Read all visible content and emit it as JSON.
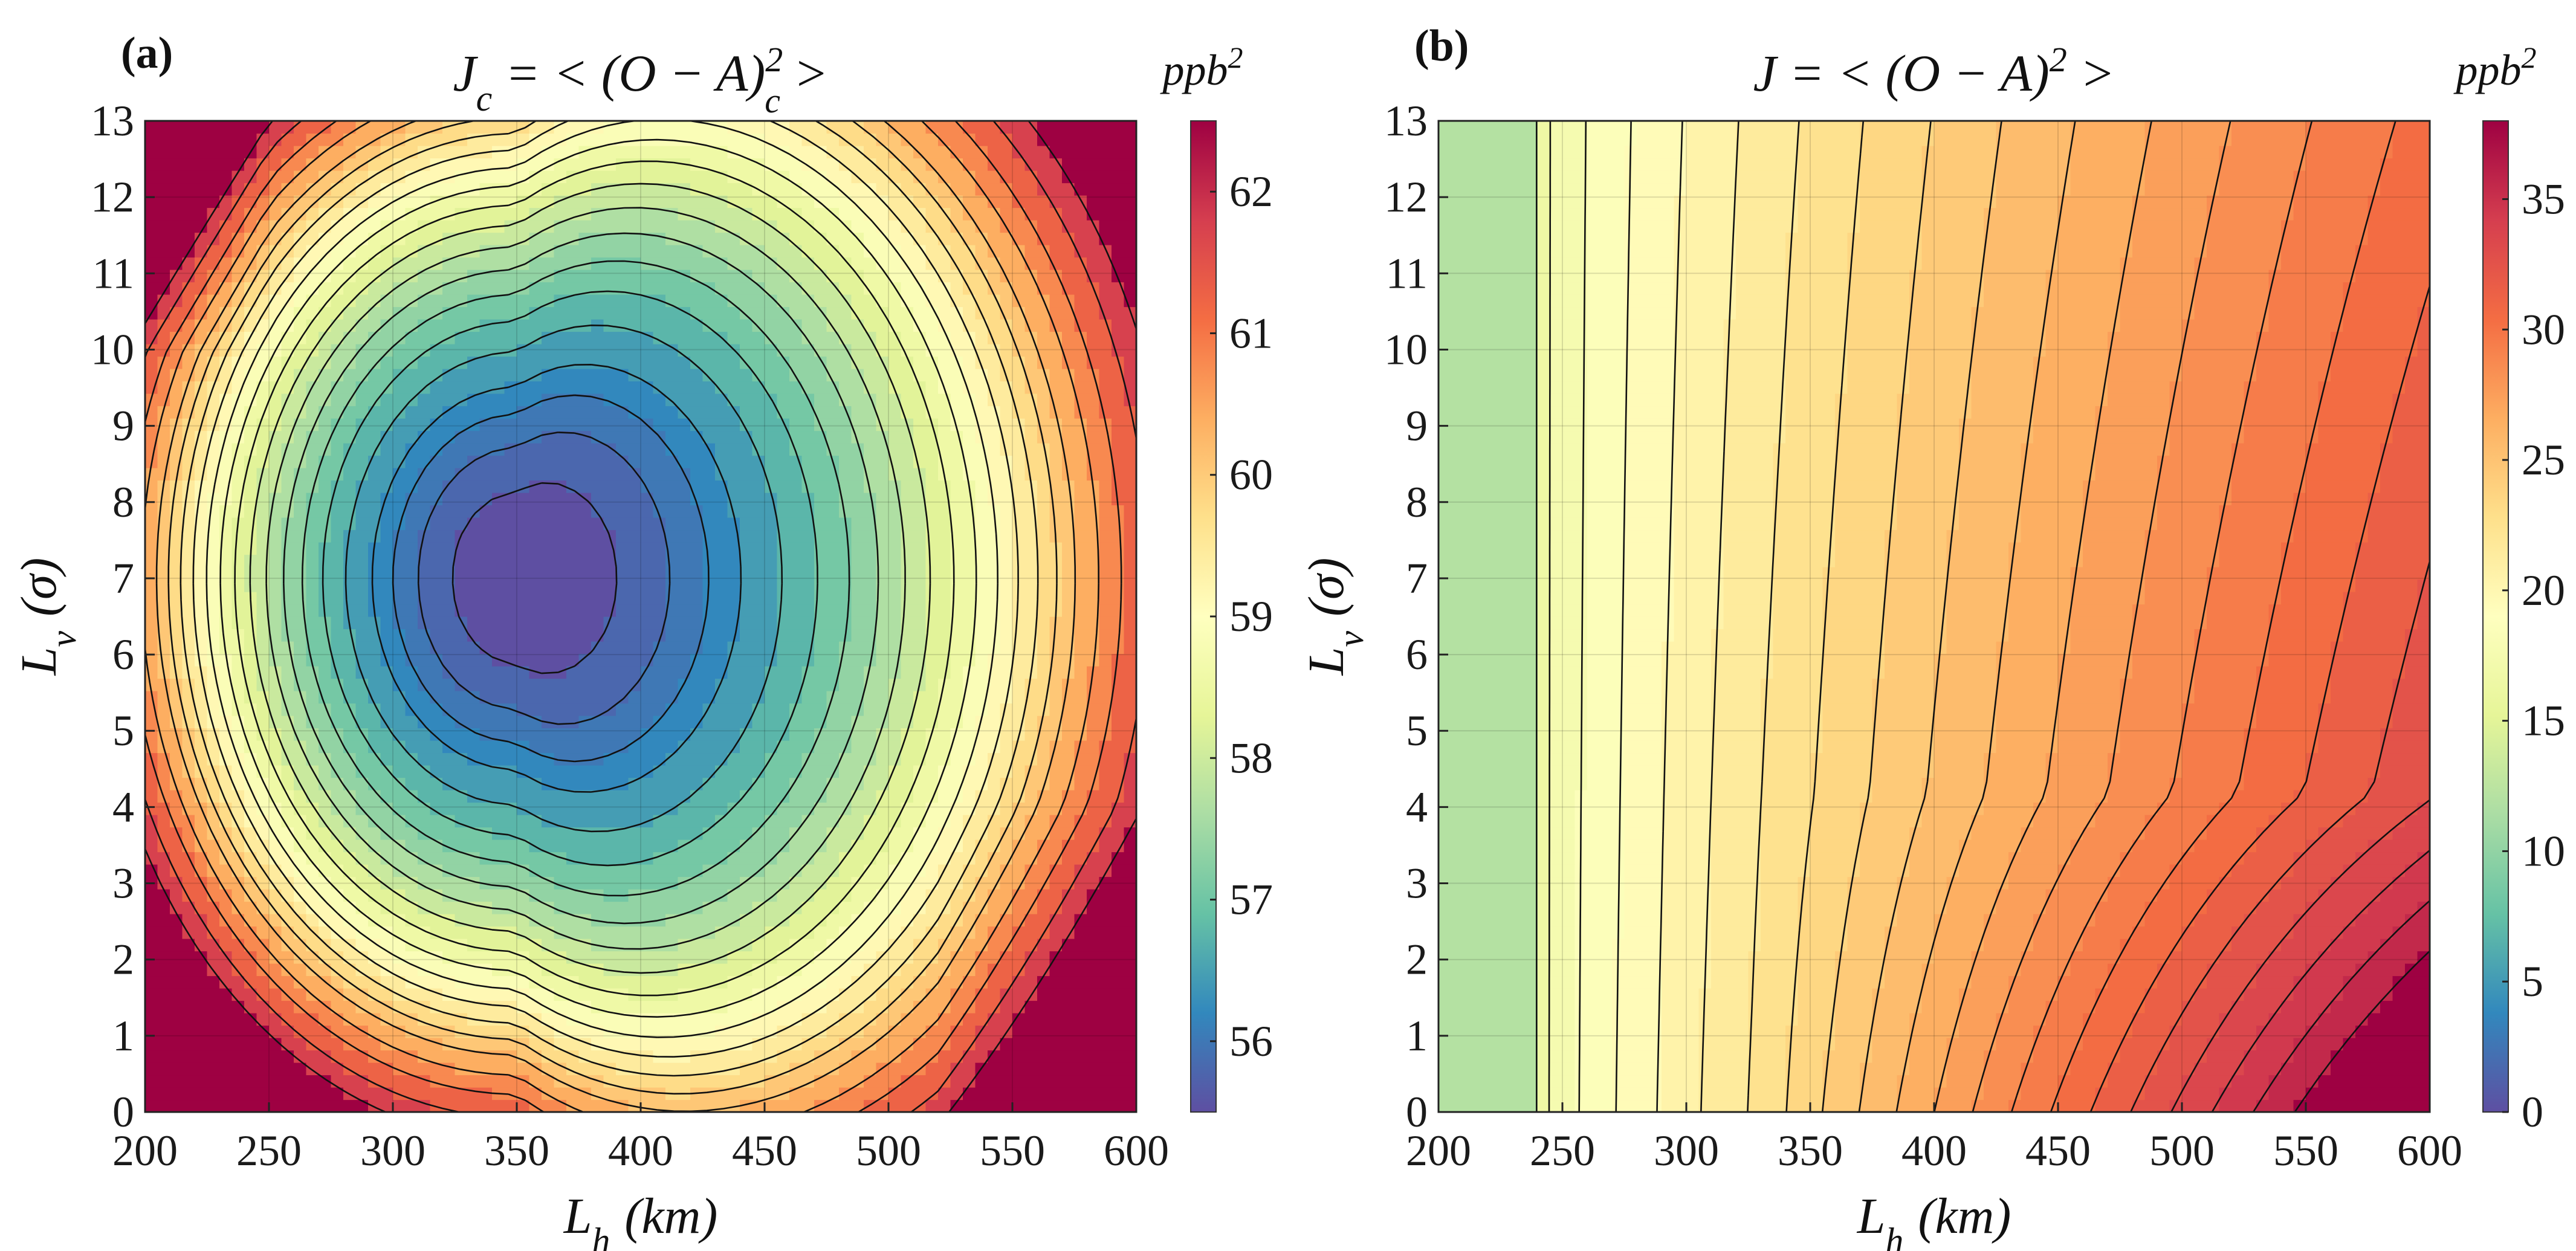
{
  "chart_data": [
    {
      "type": "heatmap",
      "subtype": "filled-contour",
      "panel_label": "(a)",
      "title": "J_c = < (O − A)_c^2 >",
      "title_parts": {
        "lhs": "J",
        "lhs_sub": "c",
        "mid": " = < (O − A)",
        "sup": "2",
        "sub": "c",
        "rhs": " >"
      },
      "xlabel": "L_h (km)",
      "xlabel_parts": {
        "sym": "L",
        "sub": "h",
        "unit": "(km)"
      },
      "ylabel": "L_v (σ)",
      "ylabel_parts": {
        "sym": "L",
        "sub": "v",
        "unit": "(σ)"
      },
      "colorbar_label": "ppb^2",
      "colorbar_label_parts": {
        "base": "ppb",
        "sup": "2"
      },
      "xlim": [
        200,
        600
      ],
      "ylim": [
        0,
        13
      ],
      "xticks": [
        "200",
        "250",
        "300",
        "350",
        "400",
        "450",
        "500",
        "550",
        "600"
      ],
      "yticks": [
        "0",
        "1",
        "2",
        "3",
        "4",
        "5",
        "6",
        "7",
        "8",
        "9",
        "10",
        "11",
        "12",
        "13"
      ],
      "colorbar_range": [
        55.5,
        62.5
      ],
      "colorbar_ticks": [
        "56",
        "57",
        "58",
        "59",
        "60",
        "61",
        "62"
      ],
      "colormap": "spectral-reversed",
      "minimum": {
        "x": 350,
        "y": 7,
        "value": 55.6
      },
      "levels": [
        55.7,
        55.9,
        56.1,
        56.3,
        56.6,
        56.9,
        57.2,
        57.5,
        57.8,
        58.1,
        58.4,
        58.7,
        59.0,
        59.3,
        59.6,
        59.9,
        60.2,
        60.6,
        61.0,
        61.5,
        62.0
      ],
      "grid": true
    },
    {
      "type": "heatmap",
      "subtype": "filled-contour",
      "panel_label": "(b)",
      "title": "J = < (O − A)^2 >",
      "title_parts": {
        "lhs": "J",
        "mid": " = < (O − A)",
        "sup": "2",
        "rhs": " >"
      },
      "xlabel": "L_h (km)",
      "xlabel_parts": {
        "sym": "L",
        "sub": "h",
        "unit": "(km)"
      },
      "ylabel": "L_v (σ)",
      "ylabel_parts": {
        "sym": "L",
        "sub": "v",
        "unit": "(σ)"
      },
      "colorbar_label": "ppb^2",
      "colorbar_label_parts": {
        "base": "ppb",
        "sup": "2"
      },
      "xlim": [
        200,
        600
      ],
      "ylim": [
        0,
        13
      ],
      "xticks": [
        "200",
        "250",
        "300",
        "350",
        "400",
        "450",
        "500",
        "550",
        "600"
      ],
      "yticks": [
        "0",
        "1",
        "2",
        "3",
        "4",
        "5",
        "6",
        "7",
        "8",
        "9",
        "10",
        "11",
        "12",
        "13"
      ],
      "colorbar_range": [
        0,
        38
      ],
      "colorbar_ticks": [
        "0",
        "5",
        "10",
        "15",
        "20",
        "25",
        "30",
        "35"
      ],
      "colormap": "spectral-reversed",
      "trend": "J increases with L_h and decreases slightly with L_v; low values (~8) near L_h = 200-240 km",
      "levels": [
        8,
        16,
        17,
        18,
        19,
        20,
        21,
        22,
        23,
        24,
        25,
        26,
        27,
        28,
        29,
        30,
        31,
        32,
        33,
        34,
        35,
        36
      ],
      "grid": true
    }
  ]
}
